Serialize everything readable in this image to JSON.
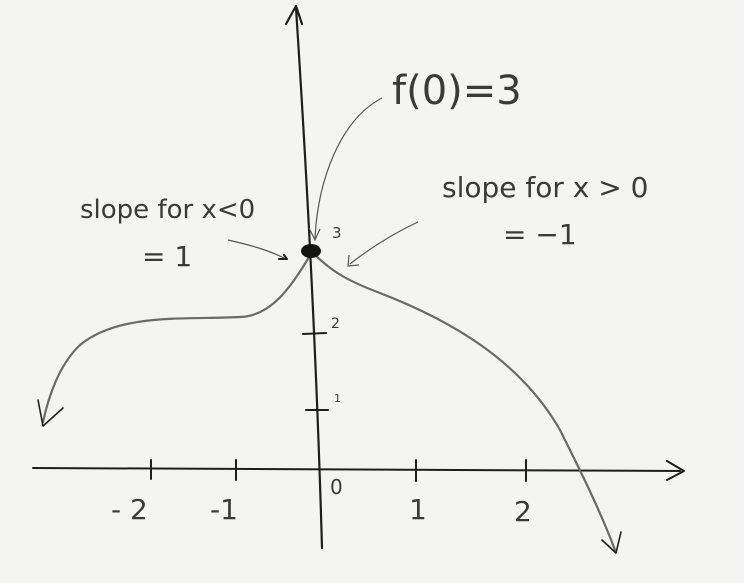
{
  "annotations": {
    "f_at_zero": "f(0)=3",
    "left_slope_line1": "slope for x<0",
    "left_slope_line2": "= 1",
    "right_slope_line1": "slope for x > 0",
    "right_slope_line2": "= −1"
  },
  "x_ticks": [
    "- 2",
    "-1",
    "0",
    "1",
    "2"
  ],
  "y_ticks": [
    "1",
    "2",
    "3"
  ],
  "colors": {
    "paper": "#f4f4f2",
    "ink": "#1e1e1e",
    "pencil": "#6a6a6a"
  }
}
